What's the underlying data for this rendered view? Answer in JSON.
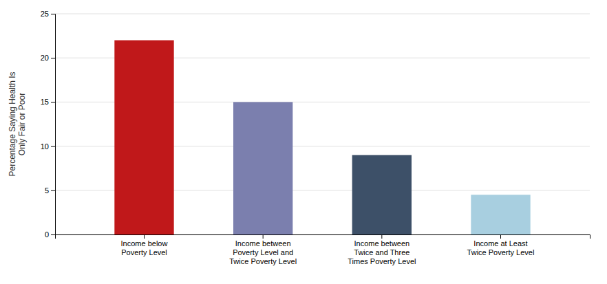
{
  "chart_data": {
    "type": "bar",
    "categories": [
      "Income below\nPoverty Level",
      "Income between\nPoverty Level and\nTwice Poverty Level",
      "Income between\nTwice and Three\nTimes Poverty Level",
      "Income at Least\nTwice Poverty Level"
    ],
    "values": [
      22,
      15,
      9,
      4.5
    ],
    "colors": [
      "#c0181a",
      "#7b7fae",
      "#3d5068",
      "#a8cfe0"
    ],
    "ylabel": "Percentage Saying Health Is\nOnly Fair or Poor",
    "ylim": [
      0,
      25
    ],
    "yticks": [
      0,
      5,
      10,
      15,
      20,
      25
    ],
    "grid": true
  }
}
